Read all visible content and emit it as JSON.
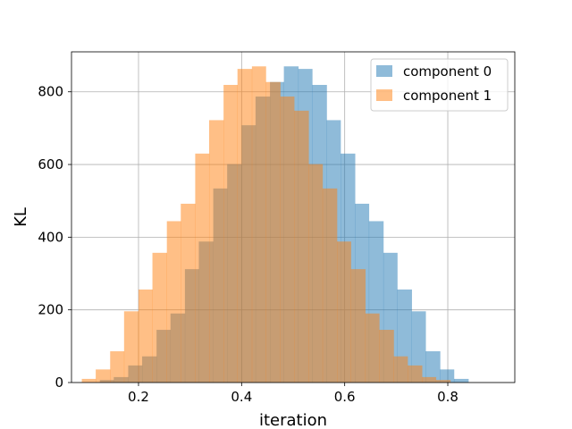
{
  "chart_data": {
    "type": "bar",
    "title": "",
    "xlabel": "iteration",
    "ylabel": "KL",
    "xlim": [
      0.07,
      0.93
    ],
    "ylim": [
      0,
      910
    ],
    "xticks": [
      0.2,
      0.4,
      0.6,
      0.8
    ],
    "xtick_labels": [
      "0.2",
      "0.4",
      "0.6",
      "0.8"
    ],
    "yticks": [
      0,
      200,
      400,
      600,
      800
    ],
    "ytick_labels": [
      "0",
      "200",
      "400",
      "600",
      "800"
    ],
    "grid": true,
    "legend_position": "upper right",
    "alpha": 0.5,
    "series": [
      {
        "name": "component 0",
        "color": "#1f77b4",
        "bin_edges": [
          0.125,
          0.152,
          0.18,
          0.207,
          0.235,
          0.262,
          0.29,
          0.317,
          0.345,
          0.372,
          0.4,
          0.427,
          0.455,
          0.482,
          0.51,
          0.537,
          0.565,
          0.592,
          0.62,
          0.647,
          0.675,
          0.702,
          0.73,
          0.757,
          0.785,
          0.812,
          0.84,
          0.867,
          0.895
        ],
        "counts": [
          7,
          15,
          47,
          72,
          145,
          190,
          312,
          388,
          534,
          601,
          708,
          787,
          827,
          870,
          863,
          819,
          722,
          630,
          492,
          444,
          357,
          256,
          196,
          86,
          36,
          10,
          0,
          0
        ]
      },
      {
        "name": "component 1",
        "color": "#ff7f0e",
        "bin_edges": [
          0.09,
          0.117,
          0.145,
          0.172,
          0.2,
          0.227,
          0.255,
          0.282,
          0.31,
          0.337,
          0.365,
          0.392,
          0.42,
          0.447,
          0.475,
          0.502,
          0.53,
          0.557,
          0.585,
          0.612,
          0.64,
          0.667,
          0.695,
          0.722,
          0.75,
          0.777,
          0.805,
          0.832,
          0.86
        ],
        "counts": [
          10,
          36,
          86,
          196,
          256,
          357,
          444,
          492,
          630,
          722,
          819,
          863,
          870,
          827,
          787,
          748,
          601,
          534,
          388,
          312,
          190,
          145,
          72,
          47,
          15,
          7,
          0,
          0
        ]
      }
    ]
  }
}
